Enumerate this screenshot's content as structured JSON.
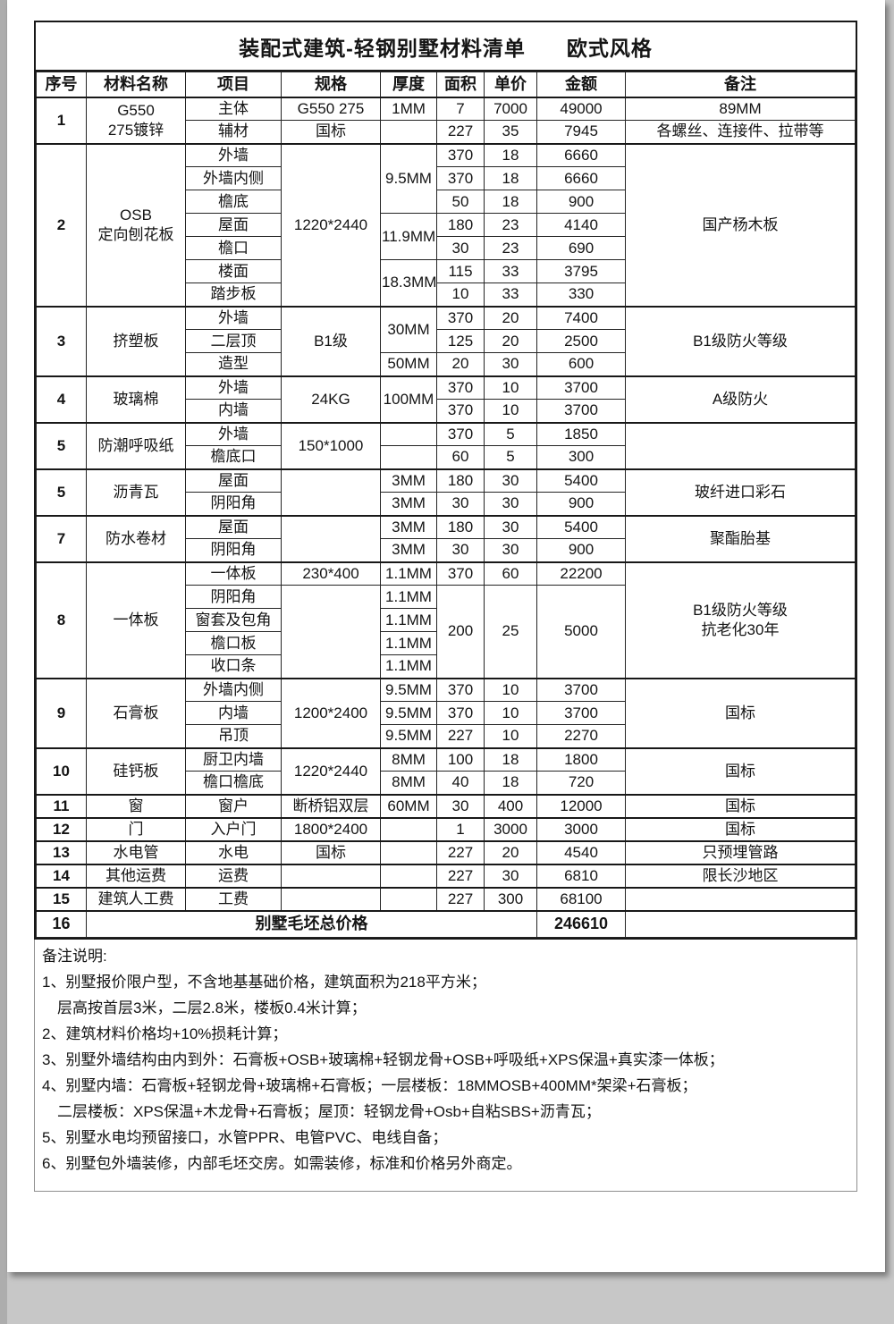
{
  "page": {
    "title_main": "装配式建筑-轻钢别墅材料清单",
    "title_style": "欧式风格"
  },
  "table": {
    "headers": [
      "序号",
      "材料名称",
      "项目",
      "规格",
      "厚度",
      "面积",
      "单价",
      "金额",
      "备注"
    ],
    "groups": [
      [
        [
          {
            "t": "1",
            "rs": 2,
            "b": true
          },
          {
            "t": "G550\n275镀锌",
            "rs": 2
          },
          {
            "t": "主体"
          },
          {
            "t": "G550 275"
          },
          {
            "t": "1MM"
          },
          {
            "t": "7"
          },
          {
            "t": "7000"
          },
          {
            "t": "49000"
          },
          {
            "t": "89MM"
          }
        ],
        [
          {
            "t": "辅材"
          },
          {
            "t": "国标"
          },
          {
            "t": ""
          },
          {
            "t": "227"
          },
          {
            "t": "35"
          },
          {
            "t": "7945"
          },
          {
            "t": "各螺丝、连接件、拉带等"
          }
        ]
      ],
      [
        [
          {
            "t": "2",
            "rs": 7,
            "b": true
          },
          {
            "t": "OSB\n定向刨花板",
            "rs": 7
          },
          {
            "t": "外墙"
          },
          {
            "t": "1220*2440",
            "rs": 7
          },
          {
            "t": "9.5MM",
            "rs": 3
          },
          {
            "t": "370"
          },
          {
            "t": "18"
          },
          {
            "t": "6660"
          },
          {
            "t": "国产杨木板",
            "rs": 7
          }
        ],
        [
          {
            "t": "外墙内侧"
          },
          {
            "t": "370"
          },
          {
            "t": "18"
          },
          {
            "t": "6660"
          }
        ],
        [
          {
            "t": "檐底"
          },
          {
            "t": "50"
          },
          {
            "t": "18"
          },
          {
            "t": "900"
          }
        ],
        [
          {
            "t": "屋面"
          },
          {
            "t": "11.9MM",
            "rs": 2
          },
          {
            "t": "180"
          },
          {
            "t": "23"
          },
          {
            "t": "4140"
          }
        ],
        [
          {
            "t": "檐口"
          },
          {
            "t": "30"
          },
          {
            "t": "23"
          },
          {
            "t": "690"
          }
        ],
        [
          {
            "t": "楼面"
          },
          {
            "t": "18.3MM",
            "rs": 2
          },
          {
            "t": "115"
          },
          {
            "t": "33"
          },
          {
            "t": "3795"
          }
        ],
        [
          {
            "t": "踏步板"
          },
          {
            "t": "10"
          },
          {
            "t": "33"
          },
          {
            "t": "330"
          }
        ]
      ],
      [
        [
          {
            "t": "3",
            "rs": 3,
            "b": true
          },
          {
            "t": "挤塑板",
            "rs": 3
          },
          {
            "t": "外墙"
          },
          {
            "t": "B1级",
            "rs": 3
          },
          {
            "t": "30MM",
            "rs": 2
          },
          {
            "t": "370"
          },
          {
            "t": "20"
          },
          {
            "t": "7400"
          },
          {
            "t": "B1级防火等级",
            "rs": 3
          }
        ],
        [
          {
            "t": "二层顶"
          },
          {
            "t": "125"
          },
          {
            "t": "20"
          },
          {
            "t": "2500"
          }
        ],
        [
          {
            "t": "造型"
          },
          {
            "t": "50MM"
          },
          {
            "t": "20"
          },
          {
            "t": "30"
          },
          {
            "t": "600"
          }
        ]
      ],
      [
        [
          {
            "t": "4",
            "rs": 2,
            "b": true
          },
          {
            "t": "玻璃棉",
            "rs": 2
          },
          {
            "t": "外墙"
          },
          {
            "t": "24KG",
            "rs": 2
          },
          {
            "t": "100MM",
            "rs": 2
          },
          {
            "t": "370"
          },
          {
            "t": "10"
          },
          {
            "t": "3700"
          },
          {
            "t": "A级防火",
            "rs": 2
          }
        ],
        [
          {
            "t": "内墙"
          },
          {
            "t": "370"
          },
          {
            "t": "10"
          },
          {
            "t": "3700"
          }
        ]
      ],
      [
        [
          {
            "t": "5",
            "rs": 2,
            "b": true
          },
          {
            "t": "防潮呼吸纸",
            "rs": 2
          },
          {
            "t": "外墙"
          },
          {
            "t": "150*1000",
            "rs": 2
          },
          {
            "t": ""
          },
          {
            "t": "370"
          },
          {
            "t": "5"
          },
          {
            "t": "1850"
          },
          {
            "t": "",
            "rs": 2
          }
        ],
        [
          {
            "t": "檐底口"
          },
          {
            "t": ""
          },
          {
            "t": "60"
          },
          {
            "t": "5"
          },
          {
            "t": "300"
          }
        ]
      ],
      [
        [
          {
            "t": "5",
            "rs": 2,
            "b": true
          },
          {
            "t": "沥青瓦",
            "rs": 2
          },
          {
            "t": "屋面"
          },
          {
            "t": "",
            "rs": 2
          },
          {
            "t": "3MM"
          },
          {
            "t": "180"
          },
          {
            "t": "30"
          },
          {
            "t": "5400"
          },
          {
            "t": "玻纤进口彩石",
            "rs": 2
          }
        ],
        [
          {
            "t": "阴阳角"
          },
          {
            "t": "3MM"
          },
          {
            "t": "30"
          },
          {
            "t": "30"
          },
          {
            "t": "900"
          }
        ]
      ],
      [
        [
          {
            "t": "7",
            "rs": 2,
            "b": true
          },
          {
            "t": "防水卷材",
            "rs": 2
          },
          {
            "t": "屋面"
          },
          {
            "t": "",
            "rs": 2
          },
          {
            "t": "3MM"
          },
          {
            "t": "180"
          },
          {
            "t": "30"
          },
          {
            "t": "5400"
          },
          {
            "t": "聚酯胎基",
            "rs": 2
          }
        ],
        [
          {
            "t": "阴阳角"
          },
          {
            "t": "3MM"
          },
          {
            "t": "30"
          },
          {
            "t": "30"
          },
          {
            "t": "900"
          }
        ]
      ],
      [
        [
          {
            "t": "8",
            "rs": 5,
            "b": true
          },
          {
            "t": "一体板",
            "rs": 5
          },
          {
            "t": "一体板"
          },
          {
            "t": "230*400"
          },
          {
            "t": "1.1MM"
          },
          {
            "t": "370"
          },
          {
            "t": "60"
          },
          {
            "t": "22200"
          },
          {
            "t": "B1级防火等级\n抗老化30年",
            "rs": 5
          }
        ],
        [
          {
            "t": "阴阳角"
          },
          {
            "t": "",
            "rs": 4
          },
          {
            "t": "1.1MM"
          },
          {
            "t": "200",
            "rs": 4
          },
          {
            "t": "25",
            "rs": 4
          },
          {
            "t": "5000",
            "rs": 4
          }
        ],
        [
          {
            "t": "窗套及包角"
          },
          {
            "t": "1.1MM"
          }
        ],
        [
          {
            "t": "檐口板"
          },
          {
            "t": "1.1MM"
          }
        ],
        [
          {
            "t": "收口条"
          },
          {
            "t": "1.1MM"
          }
        ]
      ],
      [
        [
          {
            "t": "9",
            "rs": 3,
            "b": true
          },
          {
            "t": "石膏板",
            "rs": 3
          },
          {
            "t": "外墙内侧"
          },
          {
            "t": "1200*2400",
            "rs": 3
          },
          {
            "t": "9.5MM"
          },
          {
            "t": "370"
          },
          {
            "t": "10"
          },
          {
            "t": "3700"
          },
          {
            "t": "国标",
            "rs": 3
          }
        ],
        [
          {
            "t": "内墙"
          },
          {
            "t": "9.5MM"
          },
          {
            "t": "370"
          },
          {
            "t": "10"
          },
          {
            "t": "3700"
          }
        ],
        [
          {
            "t": "吊顶"
          },
          {
            "t": "9.5MM"
          },
          {
            "t": "227"
          },
          {
            "t": "10"
          },
          {
            "t": "2270"
          }
        ]
      ],
      [
        [
          {
            "t": "10",
            "rs": 2,
            "b": true
          },
          {
            "t": "硅钙板",
            "rs": 2
          },
          {
            "t": "厨卫内墙"
          },
          {
            "t": "1220*2440",
            "rs": 2
          },
          {
            "t": "8MM"
          },
          {
            "t": "100"
          },
          {
            "t": "18"
          },
          {
            "t": "1800"
          },
          {
            "t": "国标",
            "rs": 2
          }
        ],
        [
          {
            "t": "檐口檐底"
          },
          {
            "t": "8MM"
          },
          {
            "t": "40"
          },
          {
            "t": "18"
          },
          {
            "t": "720"
          }
        ]
      ],
      [
        [
          {
            "t": "11",
            "b": true
          },
          {
            "t": "窗"
          },
          {
            "t": "窗户"
          },
          {
            "t": "断桥铝双层"
          },
          {
            "t": "60MM"
          },
          {
            "t": "30"
          },
          {
            "t": "400"
          },
          {
            "t": "12000"
          },
          {
            "t": "国标"
          }
        ]
      ],
      [
        [
          {
            "t": "12",
            "b": true
          },
          {
            "t": "门"
          },
          {
            "t": "入户门"
          },
          {
            "t": "1800*2400"
          },
          {
            "t": ""
          },
          {
            "t": "1"
          },
          {
            "t": "3000"
          },
          {
            "t": "3000"
          },
          {
            "t": "国标"
          }
        ]
      ],
      [
        [
          {
            "t": "13",
            "b": true
          },
          {
            "t": "水电管"
          },
          {
            "t": "水电"
          },
          {
            "t": "国标"
          },
          {
            "t": ""
          },
          {
            "t": "227"
          },
          {
            "t": "20"
          },
          {
            "t": "4540"
          },
          {
            "t": "只预埋管路"
          }
        ]
      ],
      [
        [
          {
            "t": "14",
            "b": true
          },
          {
            "t": "其他运费"
          },
          {
            "t": "运费"
          },
          {
            "t": ""
          },
          {
            "t": ""
          },
          {
            "t": "227"
          },
          {
            "t": "30"
          },
          {
            "t": "6810"
          },
          {
            "t": "限长沙地区"
          }
        ]
      ],
      [
        [
          {
            "t": "15",
            "b": true
          },
          {
            "t": "建筑人工费"
          },
          {
            "t": "工费"
          },
          {
            "t": ""
          },
          {
            "t": ""
          },
          {
            "t": "227"
          },
          {
            "t": "300"
          },
          {
            "t": "68100"
          },
          {
            "t": ""
          }
        ]
      ],
      [
        [
          {
            "t": "16",
            "b": true,
            "total": true
          },
          {
            "t": "别墅毛坯总价格",
            "cs": 6,
            "b": true
          },
          {
            "t": "246610",
            "b": true
          },
          {
            "t": ""
          }
        ]
      ]
    ]
  },
  "notes": {
    "title": "备注说明:",
    "lines": [
      "1、别墅报价限户型，不含地基基础价格，建筑面积为218平方米；",
      "　层高按首层3米，二层2.8米，楼板0.4米计算；",
      "2、建筑材料价格均+10%损耗计算；",
      "3、别墅外墙结构由内到外：石膏板+OSB+玻璃棉+轻钢龙骨+OSB+呼吸纸+XPS保温+真实漆一体板；",
      "4、别墅内墙：石膏板+轻钢龙骨+玻璃棉+石膏板；一层楼板：18MMOSB+400MM*架梁+石膏板；",
      "　二层楼板：XPS保温+木龙骨+石膏板；屋顶：轻钢龙骨+Osb+自粘SBS+沥青瓦；",
      "5、别墅水电均预留接口，水管PPR、电管PVC、电线自备；",
      "6、别墅包外墙装修，内部毛坯交房。如需装修，标准和价格另外商定。"
    ]
  }
}
